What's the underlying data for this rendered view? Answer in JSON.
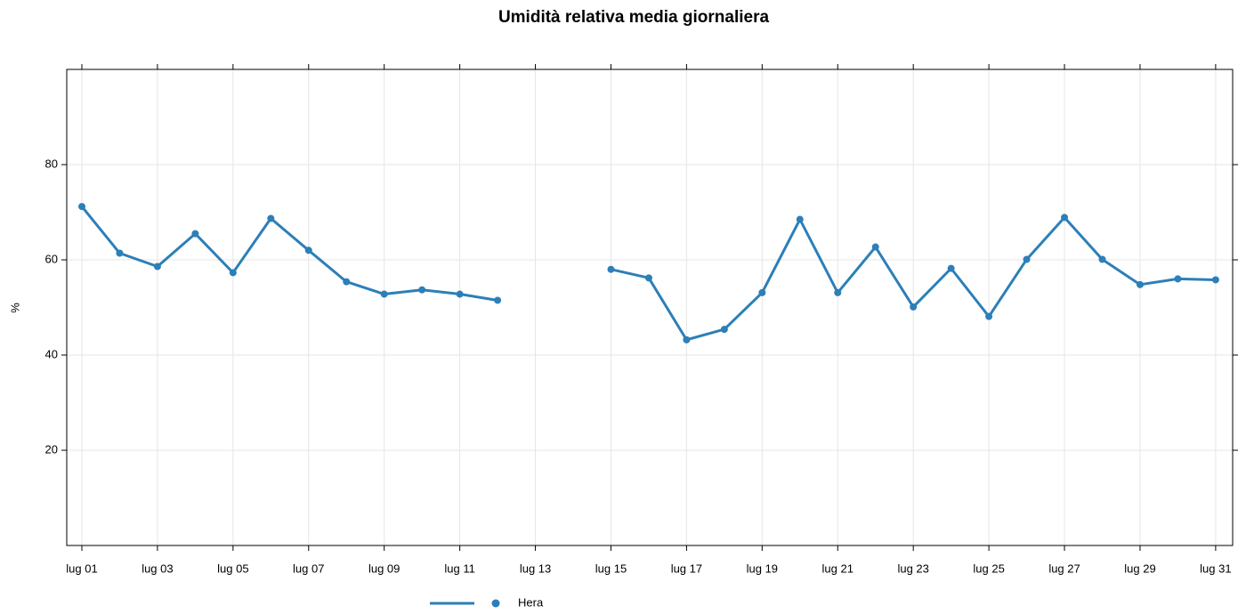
{
  "chart_data": {
    "type": "line",
    "title": "Umidità relativa media giornaliera",
    "ylabel": "%",
    "categories": [
      "lug 01",
      null,
      "lug 03",
      null,
      "lug 05",
      null,
      "lug 07",
      null,
      "lug 09",
      null,
      "lug 11",
      null,
      "lug 13",
      null,
      "lug 15",
      null,
      "lug 17",
      null,
      "lug 19",
      null,
      "lug 21",
      null,
      "lug 23",
      null,
      "lug 25",
      null,
      "lug 27",
      null,
      "lug 29",
      null,
      "lug 31"
    ],
    "series": [
      {
        "name": "Hera",
        "color": "#2c7fb8",
        "values": [
          71.2,
          61.4,
          58.6,
          65.5,
          57.3,
          68.7,
          62.0,
          55.4,
          52.8,
          53.7,
          52.8,
          51.5,
          null,
          null,
          58.0,
          56.2,
          43.2,
          45.4,
          53.1,
          68.5,
          53.1,
          62.7,
          50.1,
          58.2,
          48.1,
          60.1,
          68.9,
          60.1,
          54.8,
          56.0,
          55.8
        ]
      }
    ],
    "ylim": [
      0,
      100
    ],
    "yticks": [
      20,
      40,
      60,
      80
    ],
    "grid": true,
    "legend": "bottom"
  }
}
